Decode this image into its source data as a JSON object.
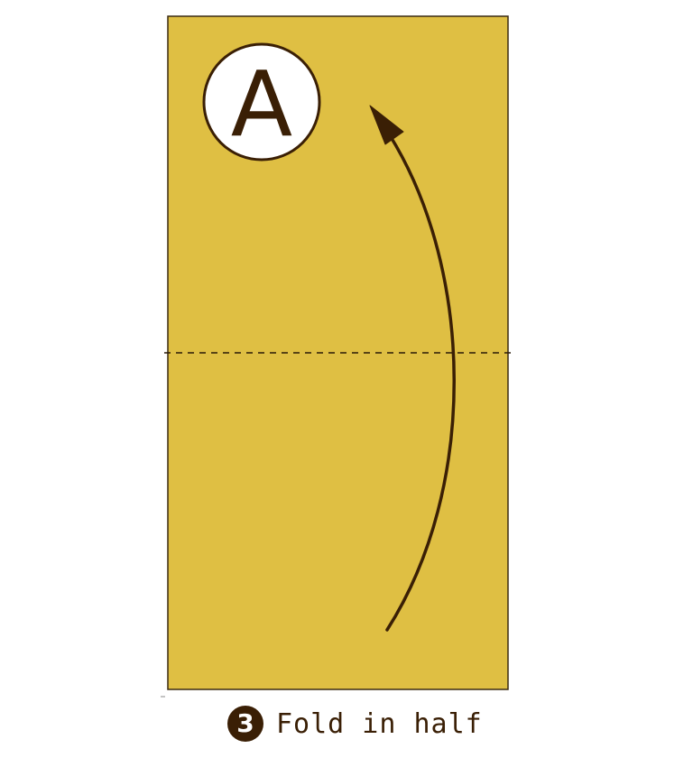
{
  "colors": {
    "paper": "#dfbf43",
    "outline": "#3a2a12",
    "ink": "#3a1f05",
    "marker_fill": "#ffffff"
  },
  "icons": {
    "fold_arrow": "curved-arrow-up-icon",
    "fold_line": "dashed-valley-fold-line"
  },
  "corner_marker": {
    "letter": "A"
  },
  "step": {
    "number": "3",
    "instruction": "Fold in half"
  }
}
